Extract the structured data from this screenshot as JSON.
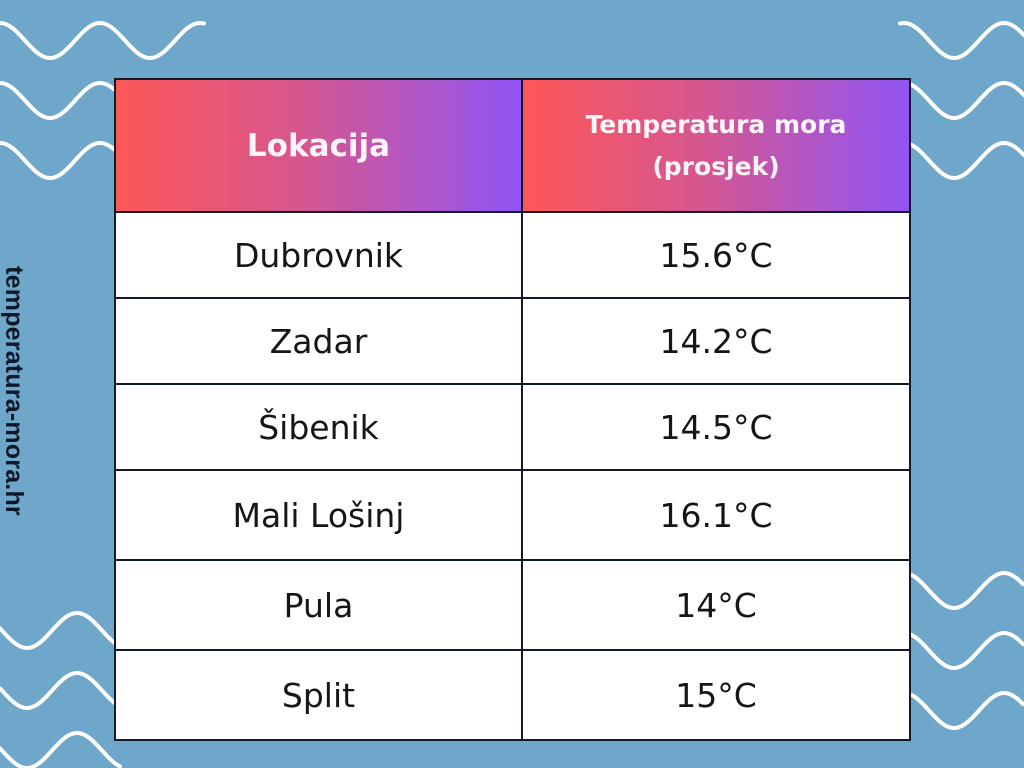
{
  "watermark": "temperatura-mora.hr",
  "colors": {
    "background": "#6fa7cb",
    "header_gradient_start": "#fe5757",
    "header_gradient_end": "#9155f5",
    "wave": "#ffffff"
  },
  "chart_data": {
    "type": "table",
    "columns": [
      "Lokacija",
      "Temperatura mora (prosjek)"
    ],
    "rows": [
      {
        "location": "Dubrovnik",
        "temperature": "15.6°C"
      },
      {
        "location": "Zadar",
        "temperature": "14.2°C"
      },
      {
        "location": "Šibenik",
        "temperature": "14.5°C"
      },
      {
        "location": "Mali Lošinj",
        "temperature": "16.1°C"
      },
      {
        "location": "Pula",
        "temperature": "14°C"
      },
      {
        "location": "Split",
        "temperature": "15°C"
      }
    ]
  }
}
